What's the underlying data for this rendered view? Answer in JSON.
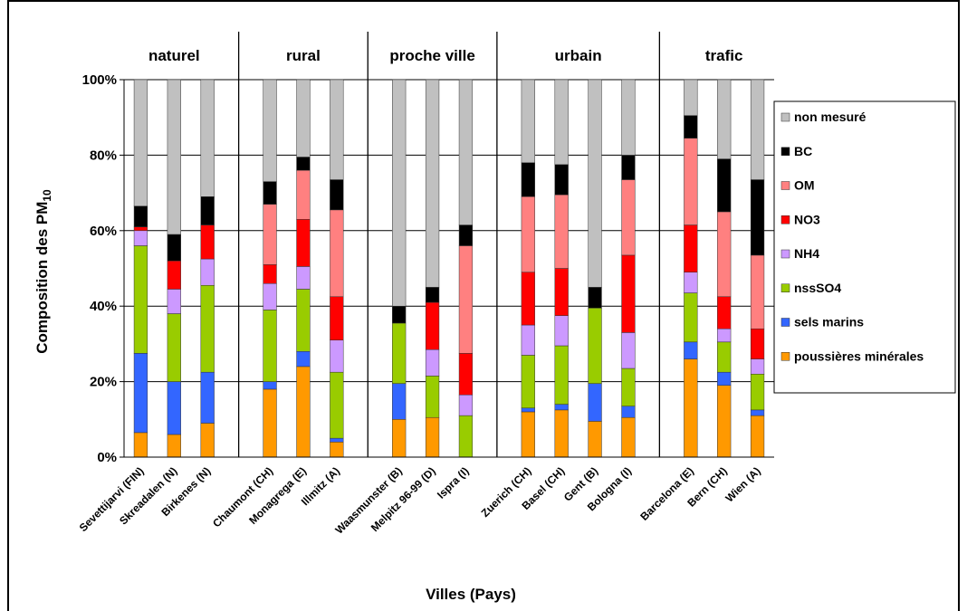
{
  "chart_data": {
    "type": "bar",
    "stacked": true,
    "xlabel": "Villes (Pays)",
    "ylabel_main": "Composition des PM",
    "ylabel_sub": "10",
    "ylim": [
      0,
      100
    ],
    "yticks": [
      "0%",
      "20%",
      "40%",
      "60%",
      "80%",
      "100%"
    ],
    "grid": true,
    "legend_position": "right",
    "groups": [
      {
        "label": "naturel",
        "categories": [
          "Sevettijarvi (FIN)",
          "Skreadalen (N)",
          "Birkenes (N)"
        ]
      },
      {
        "label": "rural",
        "categories": [
          "Chaumont (CH)",
          "Monagrega (E)",
          "Illmitz (A)"
        ]
      },
      {
        "label": "proche ville",
        "categories": [
          "Waasmunster (B)",
          "Melpitz 96-99 (D)",
          "Ispra (I)"
        ]
      },
      {
        "label": "urbain",
        "categories": [
          "Zuerich (CH)",
          "Basel (CH)",
          "Gent (B)",
          "Bologna (I)"
        ]
      },
      {
        "label": "trafic",
        "categories": [
          "Barcelona (E)",
          "Bern (CH)",
          "Wien (A)"
        ]
      }
    ],
    "categories": [
      "Sevettijarvi (FIN)",
      "Skreadalen (N)",
      "Birkenes (N)",
      "Chaumont (CH)",
      "Monagrega (E)",
      "Illmitz (A)",
      "Waasmunster (B)",
      "Melpitz 96-99 (D)",
      "Ispra (I)",
      "Zuerich (CH)",
      "Basel (CH)",
      "Gent (B)",
      "Bologna (I)",
      "Barcelona (E)",
      "Bern (CH)",
      "Wien (A)"
    ],
    "series": [
      {
        "name": "poussières minérales",
        "color": "#ff9900",
        "values": [
          6.5,
          6,
          9,
          18,
          24,
          4,
          10,
          10.5,
          0,
          12,
          12.5,
          9.5,
          10.5,
          26,
          19,
          11
        ]
      },
      {
        "name": "sels marins",
        "color": "#3366ff",
        "values": [
          21,
          14,
          13.5,
          2,
          4,
          1,
          9.5,
          0,
          0,
          1,
          1.5,
          10,
          3,
          4.5,
          3.5,
          1.5
        ]
      },
      {
        "name": "nssSO4",
        "color": "#99cc00",
        "values": [
          28.5,
          18,
          23,
          19,
          16.5,
          17.5,
          16,
          11,
          11,
          14,
          15.5,
          20,
          10,
          13,
          8,
          9.5
        ]
      },
      {
        "name": "NH4",
        "color": "#cc99ff",
        "values": [
          4,
          6.5,
          7,
          7,
          6,
          8.5,
          0,
          7,
          5.5,
          8,
          8,
          0,
          9.5,
          5.5,
          3.5,
          4
        ]
      },
      {
        "name": "NO3",
        "color": "#ff0000",
        "values": [
          1,
          7.5,
          9,
          5,
          12.5,
          11.5,
          0,
          12.5,
          11,
          14,
          12.5,
          0,
          20.5,
          12.5,
          8.5,
          8
        ]
      },
      {
        "name": "OM",
        "color": "#ff8080",
        "values": [
          0,
          0,
          0,
          16,
          13,
          23,
          0,
          0,
          28.5,
          20,
          19.5,
          0,
          20,
          23,
          22.5,
          19.5
        ]
      },
      {
        "name": "BC",
        "color": "#000000",
        "values": [
          5.5,
          7,
          7.5,
          6,
          3.5,
          8,
          4.5,
          4,
          5.5,
          9,
          8,
          5.5,
          6.5,
          6,
          14,
          20
        ]
      },
      {
        "name": "non mesuré",
        "color": "#c0c0c0",
        "values": [
          33.5,
          41,
          31,
          27,
          20.5,
          26.5,
          60,
          55,
          38.5,
          22,
          22.5,
          55,
          20,
          9.5,
          21,
          26.5
        ]
      }
    ]
  }
}
